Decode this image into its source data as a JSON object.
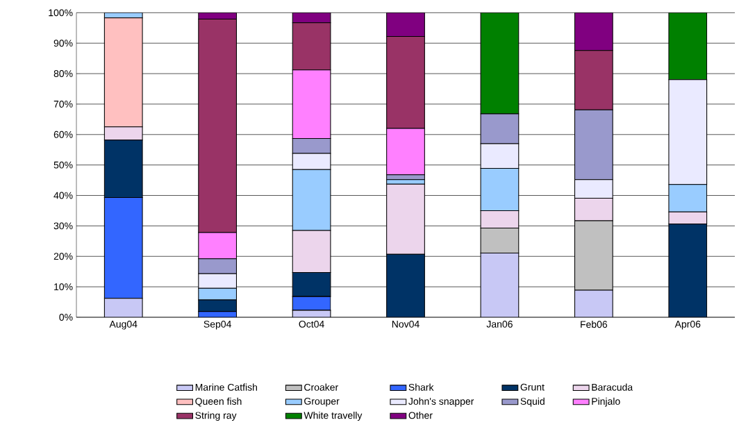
{
  "chart_data": {
    "type": "bar",
    "stacked": true,
    "grid": "y",
    "legend": "bottom",
    "categories": [
      "Aug04",
      "Sep04",
      "Oct04",
      "Nov04",
      "Jan06",
      "Feb06",
      "Apr06"
    ],
    "ylim": [
      0,
      100
    ],
    "yticks": [
      {
        "value": 0,
        "label": "0%"
      },
      {
        "value": 10,
        "label": "10%"
      },
      {
        "value": 20,
        "label": "20%"
      },
      {
        "value": 30,
        "label": "30%"
      },
      {
        "value": 40,
        "label": "40%"
      },
      {
        "value": 50,
        "label": "50%"
      },
      {
        "value": 60,
        "label": "60%"
      },
      {
        "value": 70,
        "label": "70%"
      },
      {
        "value": 80,
        "label": "80%"
      },
      {
        "value": 90,
        "label": "90%"
      },
      {
        "value": 100,
        "label": "100%"
      }
    ],
    "series": [
      {
        "name": "Marine Catfish",
        "color": "#c8c8f5",
        "values": [
          6.2,
          0,
          2.3,
          0,
          21.1,
          8.9,
          0
        ]
      },
      {
        "name": "Croaker",
        "color": "#c0c0c0",
        "values": [
          0,
          0,
          0,
          0,
          8.2,
          22.8,
          0
        ]
      },
      {
        "name": "Shark",
        "color": "#3366ff",
        "values": [
          33.1,
          1.9,
          4.5,
          0,
          0,
          0,
          0
        ]
      },
      {
        "name": "Grunt",
        "color": "#003366",
        "values": [
          18.9,
          3.8,
          7.9,
          20.7,
          0,
          0,
          30.6
        ]
      },
      {
        "name": "Baracuda",
        "color": "#ecd5ec",
        "values": [
          4.3,
          0,
          13.8,
          23.0,
          5.7,
          7.4,
          4.0
        ]
      },
      {
        "name": "Queen fish",
        "color": "#ffc0c0",
        "values": [
          35.8,
          0,
          0,
          0,
          0,
          0,
          0
        ]
      },
      {
        "name": "Grouper",
        "color": "#99ccff",
        "values": [
          1.7,
          3.8,
          20.0,
          1.5,
          13.9,
          0,
          9.0
        ]
      },
      {
        "name": "John's snapper",
        "color": "#eaeaff",
        "values": [
          0,
          4.8,
          5.3,
          0,
          8.1,
          6.1,
          34.4
        ]
      },
      {
        "name": "Squid",
        "color": "#9999cc",
        "values": [
          0,
          4.9,
          4.9,
          1.6,
          9.8,
          22.9,
          0
        ]
      },
      {
        "name": "Pinjalo",
        "color": "#ff80ff",
        "values": [
          0,
          8.6,
          22.5,
          15.2,
          0,
          0,
          0
        ]
      },
      {
        "name": "String ray",
        "color": "#993366",
        "values": [
          0,
          70.1,
          15.5,
          30.2,
          0,
          19.5,
          0
        ]
      },
      {
        "name": "White travelly",
        "color": "#008000",
        "values": [
          0,
          0,
          0,
          0,
          33.2,
          0,
          22.0
        ]
      },
      {
        "name": "Other",
        "color": "#800080",
        "values": [
          0,
          2.1,
          3.3,
          7.8,
          0,
          12.4,
          0
        ]
      }
    ]
  }
}
